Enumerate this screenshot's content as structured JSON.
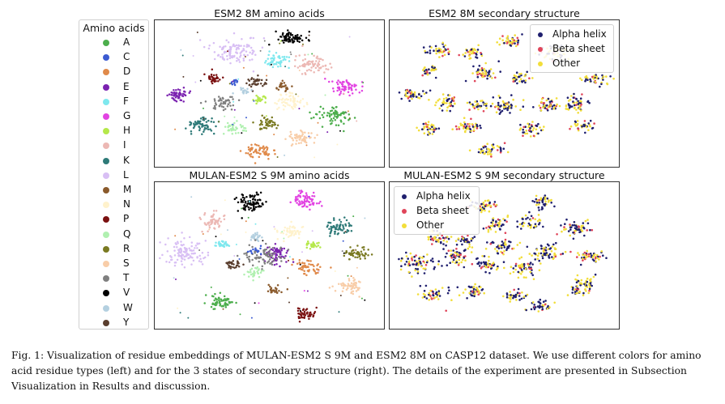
{
  "figure": {
    "caption": "Fig. 1: Visualization of residue embeddings of MULAN-ESM2 S 9M and ESM2 8M on CASP12 dataset. We use different colors for amino acid residue types (left) and for the 3 states of secondary structure (right). The details of the experiment are presented in Subsection Visualization in Results and discussion."
  },
  "legend": {
    "title": "Amino acids",
    "items": [
      {
        "label": "A",
        "color": "#4cae4c"
      },
      {
        "label": "C",
        "color": "#3c5bd1"
      },
      {
        "label": "D",
        "color": "#e08a4a"
      },
      {
        "label": "E",
        "color": "#7b22b0"
      },
      {
        "label": "F",
        "color": "#7ee8ee"
      },
      {
        "label": "G",
        "color": "#e244e2"
      },
      {
        "label": "H",
        "color": "#b5e84a"
      },
      {
        "label": "I",
        "color": "#ecb8b4"
      },
      {
        "label": "K",
        "color": "#2e7a78"
      },
      {
        "label": "L",
        "color": "#d8bff4"
      },
      {
        "label": "M",
        "color": "#8a5a2c"
      },
      {
        "label": "N",
        "color": "#fff2cc"
      },
      {
        "label": "P",
        "color": "#7a1010"
      },
      {
        "label": "Q",
        "color": "#b0f0b0"
      },
      {
        "label": "R",
        "color": "#7a7a22"
      },
      {
        "label": "S",
        "color": "#f8cda8"
      },
      {
        "label": "T",
        "color": "#7f7f7f"
      },
      {
        "label": "V",
        "color": "#000000"
      },
      {
        "label": "W",
        "color": "#b4d0e0"
      },
      {
        "label": "Y",
        "color": "#5a3e2e"
      }
    ]
  },
  "panels": {
    "p1": {
      "title": "ESM2 8M amino acids"
    },
    "p2": {
      "title": "ESM2 8M secondary structure"
    },
    "p3": {
      "title": "MULAN-ESM2 S 9M amino acids"
    },
    "p4": {
      "title": "MULAN-ESM2 S 9M secondary structure"
    }
  },
  "ss_legend": {
    "items": [
      {
        "label": "Alpha helix",
        "color": "#1f1f6e"
      },
      {
        "label": "Beta sheet",
        "color": "#e0455a"
      },
      {
        "label": "Other",
        "color": "#f2de3a"
      }
    ]
  },
  "chart_data": [
    {
      "type": "scatter",
      "title": "ESM2 8M amino acids",
      "grid": false,
      "axes_visible": false,
      "series": [
        {
          "name": "A",
          "color": "#4cae4c"
        },
        {
          "name": "C",
          "color": "#3c5bd1"
        },
        {
          "name": "D",
          "color": "#e08a4a"
        },
        {
          "name": "E",
          "color": "#7b22b0"
        },
        {
          "name": "F",
          "color": "#7ee8ee"
        },
        {
          "name": "G",
          "color": "#e244e2"
        },
        {
          "name": "H",
          "color": "#b5e84a"
        },
        {
          "name": "I",
          "color": "#ecb8b4"
        },
        {
          "name": "K",
          "color": "#2e7a78"
        },
        {
          "name": "L",
          "color": "#d8bff4"
        },
        {
          "name": "M",
          "color": "#8a5a2c"
        },
        {
          "name": "N",
          "color": "#fff2cc"
        },
        {
          "name": "P",
          "color": "#7a1010"
        },
        {
          "name": "Q",
          "color": "#b0f0b0"
        },
        {
          "name": "R",
          "color": "#7a7a22"
        },
        {
          "name": "S",
          "color": "#f8cda8"
        },
        {
          "name": "T",
          "color": "#7f7f7f"
        },
        {
          "name": "V",
          "color": "#000000"
        },
        {
          "name": "W",
          "color": "#b4d0e0"
        },
        {
          "name": "Y",
          "color": "#5a3e2e"
        }
      ]
    },
    {
      "type": "scatter",
      "title": "ESM2 8M secondary structure",
      "grid": false,
      "axes_visible": false,
      "legend_position": "top-right",
      "series": [
        {
          "name": "Alpha helix",
          "color": "#1f1f6e"
        },
        {
          "name": "Beta sheet",
          "color": "#e0455a"
        },
        {
          "name": "Other",
          "color": "#f2de3a"
        }
      ]
    },
    {
      "type": "scatter",
      "title": "MULAN-ESM2 S 9M amino acids",
      "grid": false,
      "axes_visible": false,
      "series": [
        {
          "name": "A",
          "color": "#4cae4c"
        },
        {
          "name": "C",
          "color": "#3c5bd1"
        },
        {
          "name": "D",
          "color": "#e08a4a"
        },
        {
          "name": "E",
          "color": "#7b22b0"
        },
        {
          "name": "F",
          "color": "#7ee8ee"
        },
        {
          "name": "G",
          "color": "#e244e2"
        },
        {
          "name": "H",
          "color": "#b5e84a"
        },
        {
          "name": "I",
          "color": "#ecb8b4"
        },
        {
          "name": "K",
          "color": "#2e7a78"
        },
        {
          "name": "L",
          "color": "#d8bff4"
        },
        {
          "name": "M",
          "color": "#8a5a2c"
        },
        {
          "name": "N",
          "color": "#fff2cc"
        },
        {
          "name": "P",
          "color": "#7a1010"
        },
        {
          "name": "Q",
          "color": "#b0f0b0"
        },
        {
          "name": "R",
          "color": "#7a7a22"
        },
        {
          "name": "S",
          "color": "#f8cda8"
        },
        {
          "name": "T",
          "color": "#7f7f7f"
        },
        {
          "name": "V",
          "color": "#000000"
        },
        {
          "name": "W",
          "color": "#b4d0e0"
        },
        {
          "name": "Y",
          "color": "#5a3e2e"
        }
      ]
    },
    {
      "type": "scatter",
      "title": "MULAN-ESM2 S 9M secondary structure",
      "grid": false,
      "axes_visible": false,
      "legend_position": "top-left",
      "series": [
        {
          "name": "Alpha helix",
          "color": "#1f1f6e"
        },
        {
          "name": "Beta sheet",
          "color": "#e0455a"
        },
        {
          "name": "Other",
          "color": "#f2de3a"
        }
      ]
    }
  ]
}
